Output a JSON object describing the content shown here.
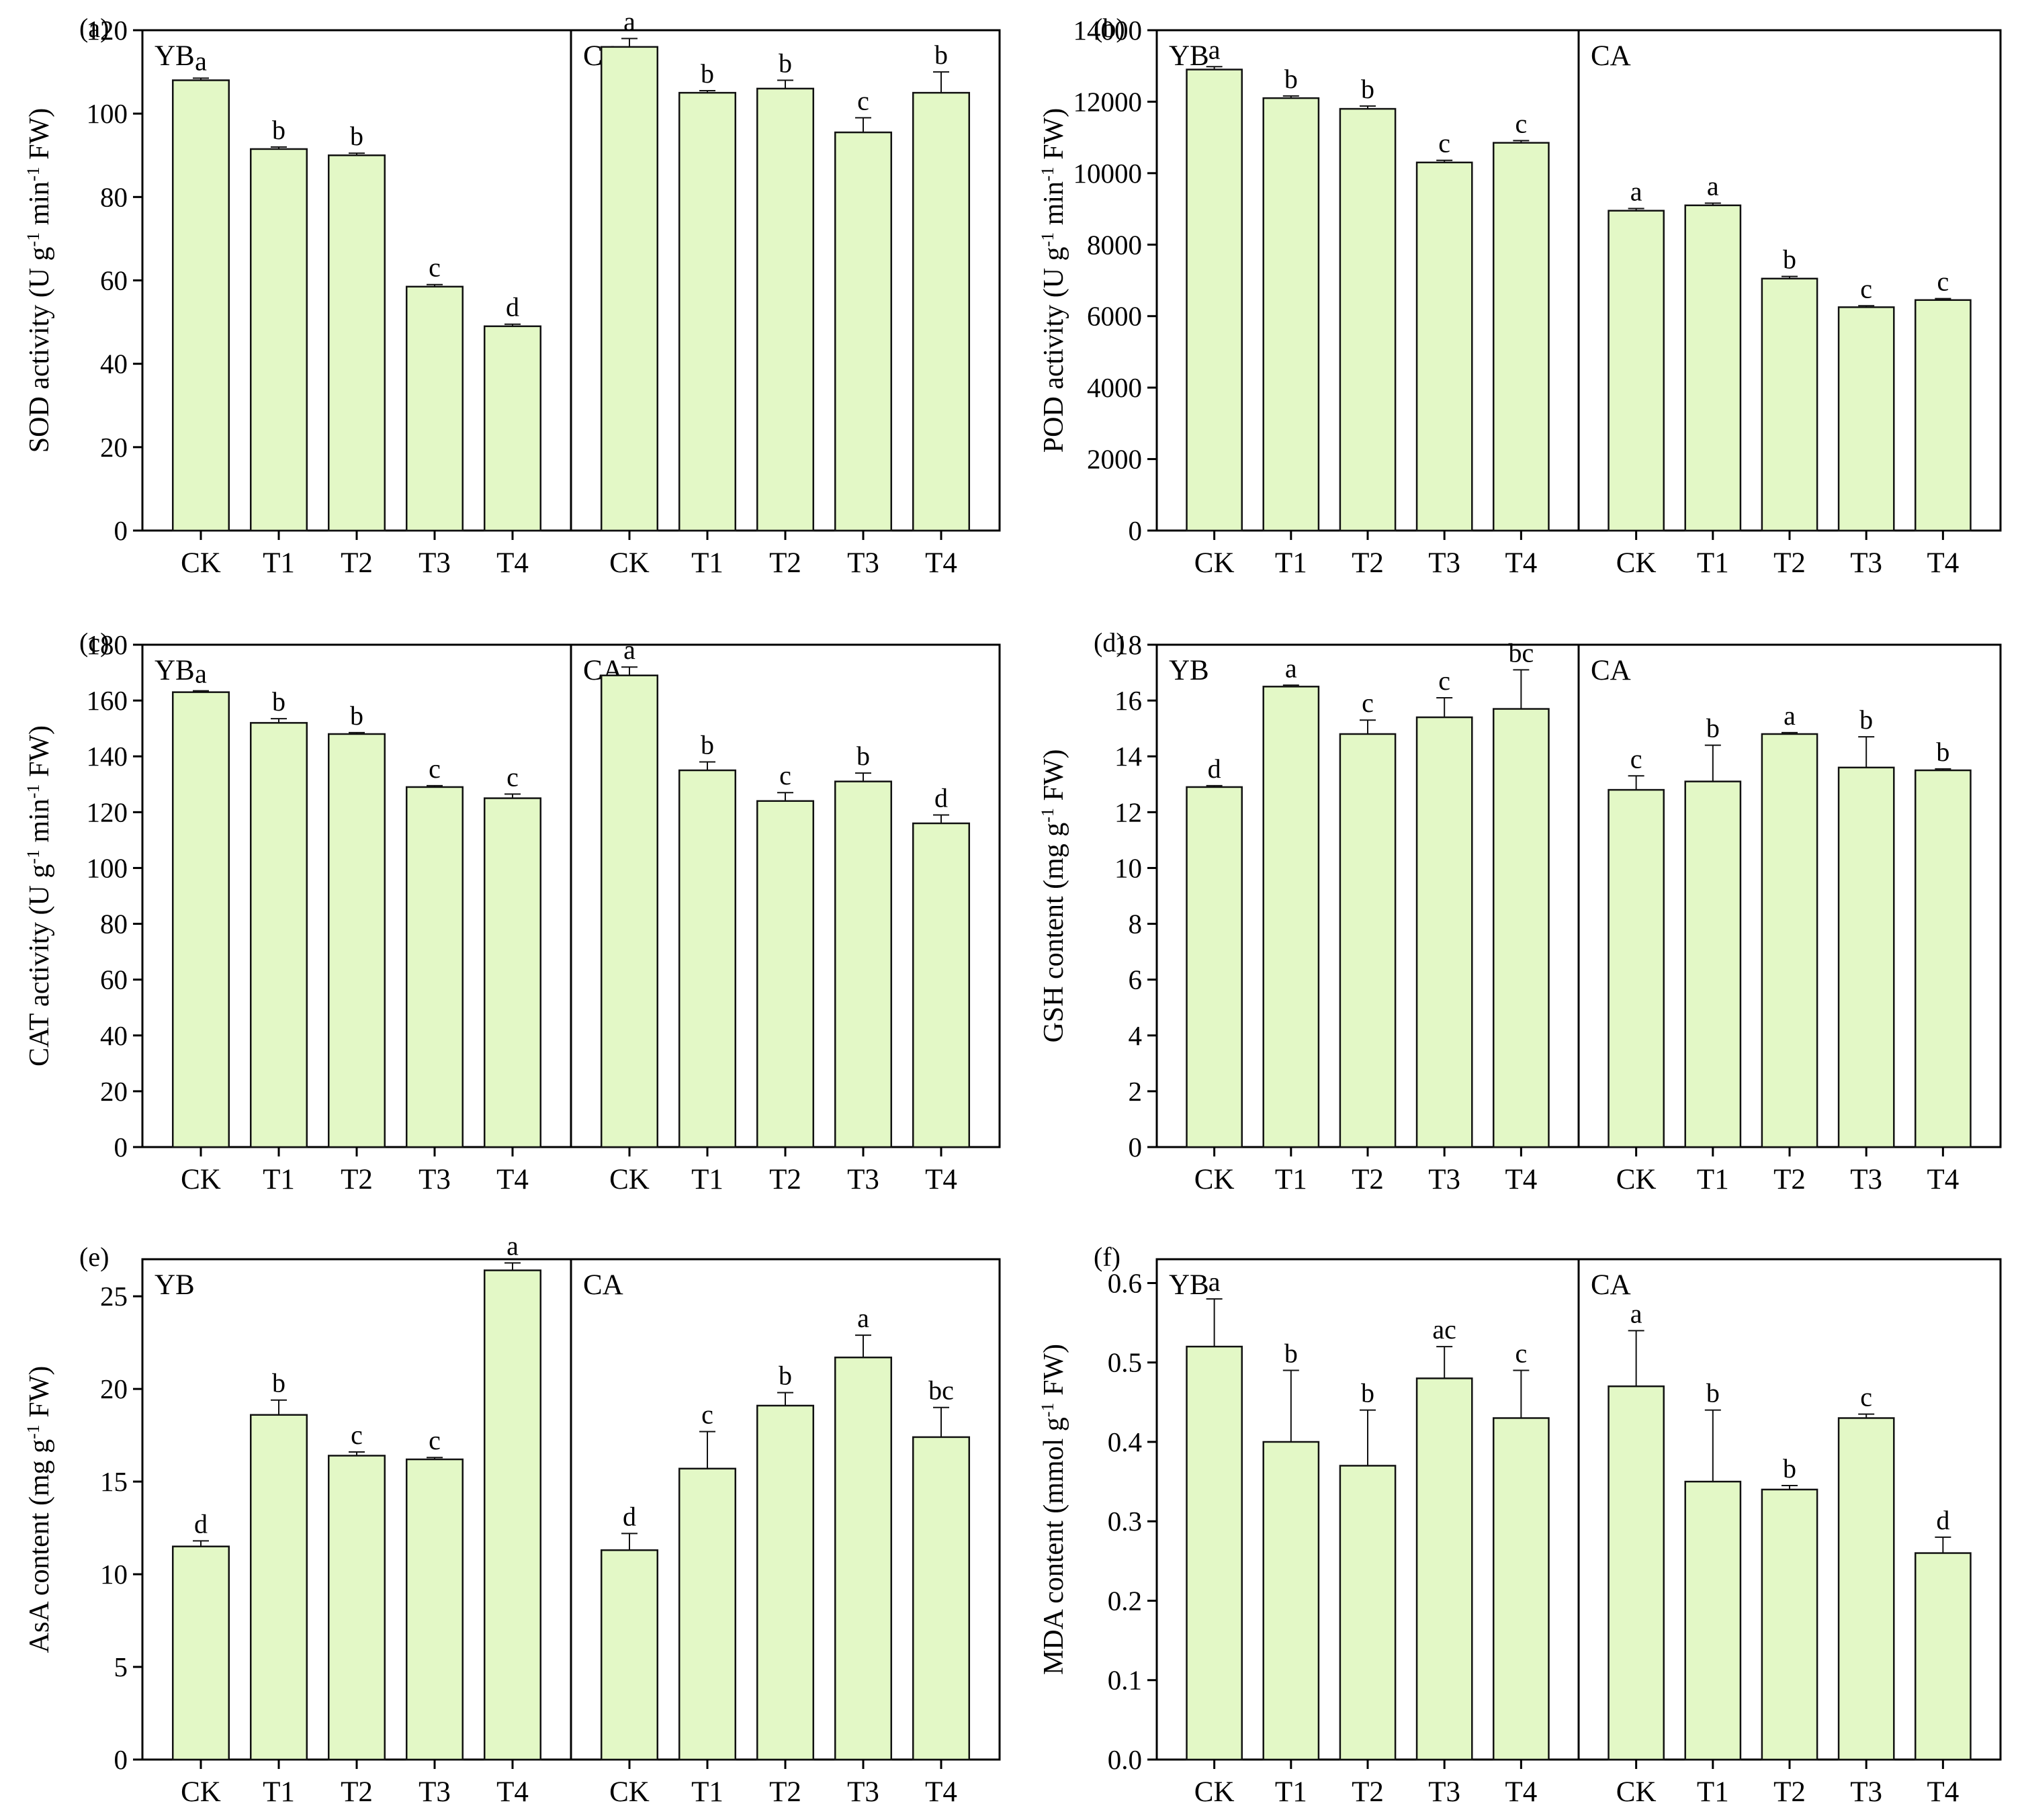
{
  "figure": {
    "groups": [
      "YB",
      "CA"
    ],
    "categories": [
      "CK",
      "T1",
      "T2",
      "T3",
      "T4"
    ],
    "bar_fill": "#e3f8c6",
    "bar_stroke": "#111111",
    "axis_color": "#000000"
  },
  "chart_data": [
    {
      "type": "bar",
      "tag": "(a)",
      "ylabel": {
        "pre": "SOD activity (U g",
        "sup1": "-1",
        "mid": " min",
        "sup2": "-1",
        "post": " FW)"
      },
      "ylim": [
        0,
        120
      ],
      "yticks": [
        0,
        20,
        40,
        60,
        80,
        100,
        120
      ],
      "categories": [
        "CK",
        "T1",
        "T2",
        "T3",
        "T4"
      ],
      "series": [
        {
          "name": "YB",
          "values": [
            108,
            91.5,
            90,
            58.5,
            49
          ],
          "errors": [
            0.5,
            0.5,
            0.5,
            0.5,
            0.5
          ],
          "letters": [
            "a",
            "b",
            "b",
            "c",
            "d"
          ]
        },
        {
          "name": "CA",
          "values": [
            116,
            105,
            106,
            95.5,
            105
          ],
          "errors": [
            2,
            0.5,
            2,
            3.5,
            5
          ],
          "letters": [
            "a",
            "b",
            "b",
            "c",
            "b"
          ]
        }
      ]
    },
    {
      "type": "bar",
      "tag": "(b)",
      "ylabel": {
        "pre": "POD activity (U g",
        "sup1": "-1",
        "mid": " min",
        "sup2": "-1",
        "post": " FW)"
      },
      "ylim": [
        0,
        14000
      ],
      "yticks": [
        0,
        2000,
        4000,
        6000,
        8000,
        10000,
        12000,
        14000
      ],
      "categories": [
        "CK",
        "T1",
        "T2",
        "T3",
        "T4"
      ],
      "series": [
        {
          "name": "YB",
          "values": [
            12900,
            12100,
            11800,
            10300,
            10850
          ],
          "errors": [
            80,
            60,
            80,
            60,
            60
          ],
          "letters": [
            "a",
            "b",
            "b",
            "c",
            "c"
          ]
        },
        {
          "name": "CA",
          "values": [
            8950,
            9100,
            7050,
            6250,
            6450
          ],
          "errors": [
            60,
            60,
            60,
            40,
            40
          ],
          "letters": [
            "a",
            "a",
            "b",
            "c",
            "c"
          ]
        }
      ]
    },
    {
      "type": "bar",
      "tag": "(c)",
      "ylabel": {
        "pre": "CAT activity (U g",
        "sup1": "-1",
        "mid": " min",
        "sup2": "-1",
        "post": " FW)"
      },
      "ylim": [
        0,
        180
      ],
      "yticks": [
        0,
        20,
        40,
        60,
        80,
        100,
        120,
        140,
        160,
        180
      ],
      "categories": [
        "CK",
        "T1",
        "T2",
        "T3",
        "T4"
      ],
      "series": [
        {
          "name": "YB",
          "values": [
            163,
            152,
            148,
            129,
            125
          ],
          "errors": [
            0.5,
            1.5,
            0.5,
            0.5,
            1.5
          ],
          "letters": [
            "a",
            "b",
            "b",
            "c",
            "c"
          ]
        },
        {
          "name": "CA",
          "values": [
            169,
            135,
            124,
            131,
            116
          ],
          "errors": [
            3,
            3,
            3,
            3,
            3
          ],
          "letters": [
            "a",
            "b",
            "c",
            "b",
            "d"
          ]
        }
      ]
    },
    {
      "type": "bar",
      "tag": "(d)",
      "ylabel": {
        "pre": "GSH content (mg g",
        "sup1": "-1",
        "mid": "",
        "sup2": "",
        "post": " FW)"
      },
      "ylim": [
        0,
        18
      ],
      "yticks": [
        0,
        2,
        4,
        6,
        8,
        10,
        12,
        14,
        16,
        18
      ],
      "categories": [
        "CK",
        "T1",
        "T2",
        "T3",
        "T4"
      ],
      "series": [
        {
          "name": "YB",
          "values": [
            12.9,
            16.5,
            14.8,
            15.4,
            15.7
          ],
          "errors": [
            0.05,
            0.05,
            0.5,
            0.7,
            1.4
          ],
          "letters": [
            "d",
            "a",
            "c",
            "c",
            "bc"
          ]
        },
        {
          "name": "CA",
          "values": [
            12.8,
            13.1,
            14.8,
            13.6,
            13.5
          ],
          "errors": [
            0.5,
            1.3,
            0.05,
            1.1,
            0.05
          ],
          "letters": [
            "c",
            "b",
            "a",
            "b",
            "b"
          ]
        }
      ]
    },
    {
      "type": "bar",
      "tag": "(e)",
      "ylabel": {
        "pre": "AsA content (mg g",
        "sup1": "-1",
        "mid": "",
        "sup2": "",
        "post": " FW)"
      },
      "ylim": [
        0,
        27
      ],
      "yticks": [
        0,
        5,
        10,
        15,
        20,
        25
      ],
      "categories": [
        "CK",
        "T1",
        "T2",
        "T3",
        "T4"
      ],
      "series": [
        {
          "name": "YB",
          "values": [
            11.5,
            18.6,
            16.4,
            16.2,
            26.4
          ],
          "errors": [
            0.3,
            0.8,
            0.2,
            0.1,
            0.4
          ],
          "letters": [
            "d",
            "b",
            "c",
            "c",
            "a"
          ]
        },
        {
          "name": "CA",
          "values": [
            11.3,
            15.7,
            19.1,
            21.7,
            17.4
          ],
          "errors": [
            0.9,
            2,
            0.7,
            1.2,
            1.6
          ],
          "letters": [
            "d",
            "c",
            "b",
            "a",
            "bc"
          ]
        }
      ]
    },
    {
      "type": "bar",
      "tag": "(f)",
      "ylabel": {
        "pre": "MDA content (mmol g",
        "sup1": "-1",
        "mid": "",
        "sup2": "",
        "post": " FW)"
      },
      "ylim": [
        0,
        0.63
      ],
      "yticks": [
        0.0,
        0.1,
        0.2,
        0.3,
        0.4,
        0.5,
        0.6
      ],
      "tick_decimals": 1,
      "categories": [
        "CK",
        "T1",
        "T2",
        "T3",
        "T4"
      ],
      "series": [
        {
          "name": "YB",
          "values": [
            0.52,
            0.4,
            0.37,
            0.48,
            0.43
          ],
          "errors": [
            0.06,
            0.09,
            0.07,
            0.04,
            0.06
          ],
          "letters": [
            "a",
            "b",
            "b",
            "ac",
            "c"
          ]
        },
        {
          "name": "CA",
          "values": [
            0.47,
            0.35,
            0.34,
            0.43,
            0.26
          ],
          "errors": [
            0.07,
            0.09,
            0.005,
            0.005,
            0.02
          ],
          "letters": [
            "a",
            "b",
            "b",
            "c",
            "d"
          ]
        }
      ]
    }
  ]
}
